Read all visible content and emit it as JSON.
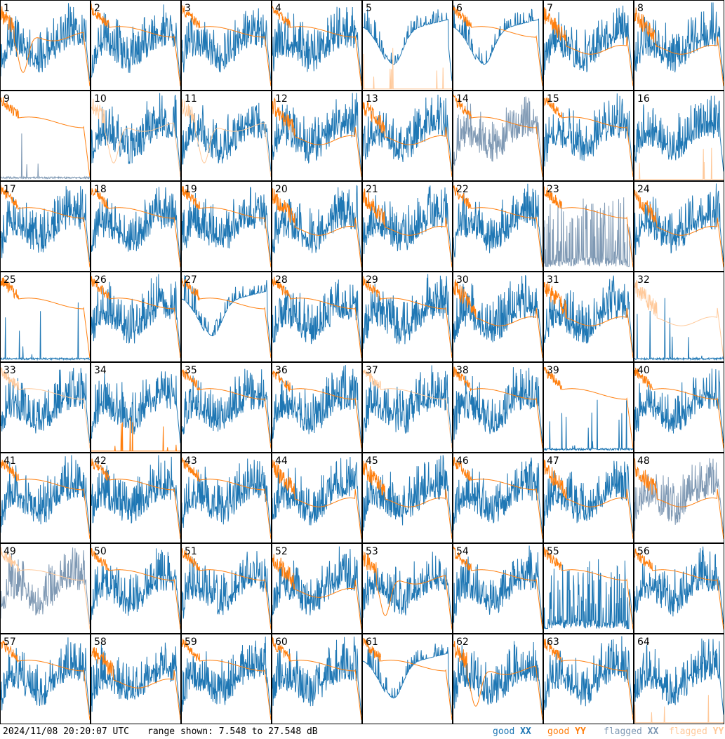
{
  "title": "",
  "timestamp": "2024/11/08 20:20:07 UTC",
  "range_text": "range shown: 7.548 to 27.548 dB",
  "legend": [
    {
      "word": "good",
      "pol": "XX",
      "color": "#1f77b4"
    },
    {
      "word": "good",
      "pol": "YY",
      "color": "#ff7f0e"
    },
    {
      "word": "flagged",
      "pol": "XX",
      "color": "#7f99b4"
    },
    {
      "word": "flagged",
      "pol": "YY",
      "color": "#ffc99a"
    }
  ],
  "colors": {
    "good_xx": "#1f77b4",
    "good_yy": "#ff7f0e",
    "flagged_xx": "#7f99b4",
    "flagged_yy": "#ffc99a",
    "border": "#000000"
  },
  "chart_data": {
    "type": "line",
    "grid": {
      "rows": 8,
      "cols": 8
    },
    "ylim": [
      7.548,
      27.548
    ],
    "yunit": "dB",
    "panels": [
      {
        "label": "1",
        "xx": "good",
        "yy": "good",
        "xx_shape": "normal",
        "yy_shape": "low_bowl"
      },
      {
        "label": "2",
        "xx": "good",
        "yy": "good",
        "xx_shape": "normal",
        "yy_shape": "flat_high"
      },
      {
        "label": "3",
        "xx": "good",
        "yy": "good",
        "xx_shape": "normal",
        "yy_shape": "flat_high"
      },
      {
        "label": "4",
        "xx": "good",
        "yy": "good",
        "xx_shape": "normal",
        "yy_shape": "flat_high"
      },
      {
        "label": "5",
        "xx": "good",
        "yy": "flagged",
        "xx_shape": "bowl",
        "yy_shape": "spikes_low"
      },
      {
        "label": "6",
        "xx": "good",
        "yy": "good",
        "xx_shape": "bowl",
        "yy_shape": "flat_high"
      },
      {
        "label": "7",
        "xx": "good",
        "yy": "good",
        "xx_shape": "normal",
        "yy_shape": "flat_mid"
      },
      {
        "label": "8",
        "xx": "good",
        "yy": "good",
        "xx_shape": "normal",
        "yy_shape": "flat_mid"
      },
      {
        "label": "9",
        "xx": "flagged",
        "yy": "good",
        "xx_shape": "spikes_low",
        "yy_shape": "flat_high"
      },
      {
        "label": "10",
        "xx": "good",
        "yy": "flagged",
        "xx_shape": "normal",
        "yy_shape": "low_bowl"
      },
      {
        "label": "11",
        "xx": "good",
        "yy": "flagged",
        "xx_shape": "normal",
        "yy_shape": "low_bowl"
      },
      {
        "label": "12",
        "xx": "good",
        "yy": "good",
        "xx_shape": "normal",
        "yy_shape": "flat_mid"
      },
      {
        "label": "13",
        "xx": "good",
        "yy": "good",
        "xx_shape": "normal",
        "yy_shape": "flat_mid"
      },
      {
        "label": "14",
        "xx": "flagged",
        "yy": "good",
        "xx_shape": "normal",
        "yy_shape": "flat_high"
      },
      {
        "label": "15",
        "xx": "good",
        "yy": "good",
        "xx_shape": "normal",
        "yy_shape": "flat_high"
      },
      {
        "label": "16",
        "xx": "good",
        "yy": "flagged",
        "xx_shape": "normal",
        "yy_shape": "spikes_low"
      },
      {
        "label": "17",
        "xx": "good",
        "yy": "good",
        "xx_shape": "normal",
        "yy_shape": "flat_high"
      },
      {
        "label": "18",
        "xx": "good",
        "yy": "good",
        "xx_shape": "normal",
        "yy_shape": "flat_high"
      },
      {
        "label": "19",
        "xx": "good",
        "yy": "good",
        "xx_shape": "normal",
        "yy_shape": "flat_high"
      },
      {
        "label": "20",
        "xx": "good",
        "yy": "good",
        "xx_shape": "normal",
        "yy_shape": "flat_mid"
      },
      {
        "label": "21",
        "xx": "good",
        "yy": "good",
        "xx_shape": "normal",
        "yy_shape": "flat_mid"
      },
      {
        "label": "22",
        "xx": "good",
        "yy": "good",
        "xx_shape": "normal",
        "yy_shape": "flat_high"
      },
      {
        "label": "23",
        "xx": "flagged",
        "yy": "good",
        "xx_shape": "noise_low",
        "yy_shape": "flat_high"
      },
      {
        "label": "24",
        "xx": "good",
        "yy": "good",
        "xx_shape": "normal",
        "yy_shape": "flat_mid"
      },
      {
        "label": "25",
        "xx": "good",
        "yy": "good",
        "xx_shape": "spikes_low",
        "yy_shape": "flat_high"
      },
      {
        "label": "26",
        "xx": "good",
        "yy": "good",
        "xx_shape": "normal",
        "yy_shape": "flat_high"
      },
      {
        "label": "27",
        "xx": "good",
        "yy": "good",
        "xx_shape": "bowl",
        "yy_shape": "flat_high"
      },
      {
        "label": "28",
        "xx": "good",
        "yy": "good",
        "xx_shape": "normal",
        "yy_shape": "flat_high"
      },
      {
        "label": "29",
        "xx": "good",
        "yy": "good",
        "xx_shape": "normal",
        "yy_shape": "flat_high"
      },
      {
        "label": "30",
        "xx": "good",
        "yy": "good",
        "xx_shape": "normal",
        "yy_shape": "flat_mid"
      },
      {
        "label": "31",
        "xx": "good",
        "yy": "good",
        "xx_shape": "normal",
        "yy_shape": "flat_mid"
      },
      {
        "label": "32",
        "xx": "good",
        "yy": "flagged",
        "xx_shape": "spikes_low",
        "yy_shape": "flat_mid"
      },
      {
        "label": "33",
        "xx": "good",
        "yy": "flagged",
        "xx_shape": "normal",
        "yy_shape": "flat_high"
      },
      {
        "label": "34",
        "xx": "good",
        "yy": "good",
        "xx_shape": "normal",
        "yy_shape": "spikes_low"
      },
      {
        "label": "35",
        "xx": "good",
        "yy": "good",
        "xx_shape": "normal",
        "yy_shape": "flat_high"
      },
      {
        "label": "36",
        "xx": "good",
        "yy": "good",
        "xx_shape": "normal",
        "yy_shape": "flat_high"
      },
      {
        "label": "37",
        "xx": "good",
        "yy": "flagged",
        "xx_shape": "normal",
        "yy_shape": "flat_high"
      },
      {
        "label": "38",
        "xx": "good",
        "yy": "good",
        "xx_shape": "normal",
        "yy_shape": "flat_high"
      },
      {
        "label": "39",
        "xx": "good",
        "yy": "good",
        "xx_shape": "spikes_low",
        "yy_shape": "flat_high"
      },
      {
        "label": "40",
        "xx": "good",
        "yy": "good",
        "xx_shape": "normal",
        "yy_shape": "flat_high"
      },
      {
        "label": "41",
        "xx": "good",
        "yy": "good",
        "xx_shape": "normal",
        "yy_shape": "flat_high"
      },
      {
        "label": "42",
        "xx": "good",
        "yy": "good",
        "xx_shape": "normal",
        "yy_shape": "flat_high"
      },
      {
        "label": "43",
        "xx": "good",
        "yy": "good",
        "xx_shape": "normal",
        "yy_shape": "flat_high"
      },
      {
        "label": "44",
        "xx": "good",
        "yy": "good",
        "xx_shape": "normal",
        "yy_shape": "flat_mid"
      },
      {
        "label": "45",
        "xx": "good",
        "yy": "good",
        "xx_shape": "normal",
        "yy_shape": "flat_mid"
      },
      {
        "label": "46",
        "xx": "good",
        "yy": "good",
        "xx_shape": "normal",
        "yy_shape": "flat_high"
      },
      {
        "label": "47",
        "xx": "good",
        "yy": "good",
        "xx_shape": "normal",
        "yy_shape": "flat_mid"
      },
      {
        "label": "48",
        "xx": "flagged",
        "yy": "good",
        "xx_shape": "normal",
        "yy_shape": "flat_mid"
      },
      {
        "label": "49",
        "xx": "flagged",
        "yy": "flagged",
        "xx_shape": "normal",
        "yy_shape": "flat_high"
      },
      {
        "label": "50",
        "xx": "good",
        "yy": "good",
        "xx_shape": "normal",
        "yy_shape": "flat_high"
      },
      {
        "label": "51",
        "xx": "good",
        "yy": "good",
        "xx_shape": "normal",
        "yy_shape": "flat_high"
      },
      {
        "label": "52",
        "xx": "good",
        "yy": "good",
        "xx_shape": "normal",
        "yy_shape": "flat_mid"
      },
      {
        "label": "53",
        "xx": "good",
        "yy": "good",
        "xx_shape": "normal",
        "yy_shape": "low_bowl"
      },
      {
        "label": "54",
        "xx": "good",
        "yy": "good",
        "xx_shape": "normal",
        "yy_shape": "flat_high"
      },
      {
        "label": "55",
        "xx": "good",
        "yy": "good",
        "xx_shape": "noise_low",
        "yy_shape": "flat_high"
      },
      {
        "label": "56",
        "xx": "good",
        "yy": "good",
        "xx_shape": "normal",
        "yy_shape": "flat_high"
      },
      {
        "label": "57",
        "xx": "good",
        "yy": "good",
        "xx_shape": "normal",
        "yy_shape": "flat_high"
      },
      {
        "label": "58",
        "xx": "good",
        "yy": "good",
        "xx_shape": "normal",
        "yy_shape": "flat_mid"
      },
      {
        "label": "59",
        "xx": "good",
        "yy": "good",
        "xx_shape": "normal",
        "yy_shape": "flat_high"
      },
      {
        "label": "60",
        "xx": "good",
        "yy": "good",
        "xx_shape": "normal",
        "yy_shape": "flat_high"
      },
      {
        "label": "61",
        "xx": "good",
        "yy": "good",
        "xx_shape": "bowl",
        "yy_shape": "flat_high"
      },
      {
        "label": "62",
        "xx": "good",
        "yy": "good",
        "xx_shape": "normal",
        "yy_shape": "low_bowl"
      },
      {
        "label": "63",
        "xx": "good",
        "yy": "good",
        "xx_shape": "normal",
        "yy_shape": "flat_high"
      },
      {
        "label": "64",
        "xx": "good",
        "yy": "flagged",
        "xx_shape": "normal",
        "yy_shape": "spikes_low"
      }
    ]
  }
}
